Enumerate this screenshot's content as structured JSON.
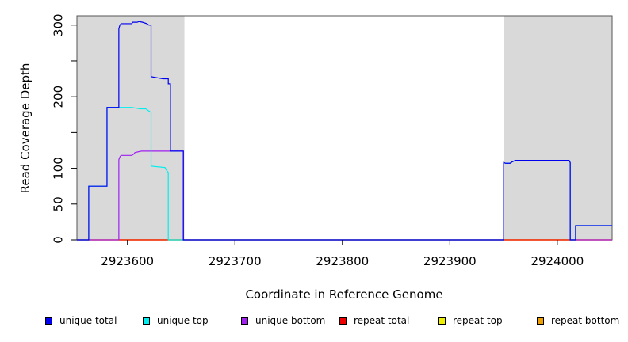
{
  "chart_data": {
    "type": "line",
    "xlabel": "Coordinate in Reference Genome",
    "ylabel": "Read Coverage Depth",
    "xlim": [
      2923553,
      2924051
    ],
    "ylim": [
      0,
      313
    ],
    "x_ticks": [
      2923600,
      2923700,
      2923800,
      2923900,
      2924000
    ],
    "x_tick_labels": [
      "2923600",
      "2923700",
      "2923800",
      "2923900",
      "2924000"
    ],
    "y_ticks": [
      0,
      50,
      100,
      200,
      300
    ],
    "y_tick_labels": [
      "0",
      "50",
      "100",
      "200",
      "300"
    ],
    "y_minor_ticks": [
      150,
      250
    ],
    "shaded_regions": [
      [
        2923553,
        2923653
      ],
      [
        2923950,
        2924051
      ]
    ],
    "shade_color": "#d9d9d9",
    "grid": false,
    "legend_position": "bottom",
    "series": [
      {
        "name": "unique total",
        "color": "#0000ee",
        "points": [
          [
            2923553,
            0
          ],
          [
            2923564,
            0
          ],
          [
            2923564,
            75
          ],
          [
            2923581,
            75
          ],
          [
            2923581,
            185
          ],
          [
            2923592,
            185
          ],
          [
            2923592,
            295
          ],
          [
            2923593,
            300
          ],
          [
            2923594,
            302
          ],
          [
            2923604,
            302
          ],
          [
            2923605,
            304
          ],
          [
            2923609,
            304
          ],
          [
            2923611,
            305
          ],
          [
            2923614,
            304
          ],
          [
            2923618,
            302
          ],
          [
            2923620,
            300
          ],
          [
            2923622,
            300
          ],
          [
            2923622,
            228
          ],
          [
            2923633,
            225
          ],
          [
            2923638,
            225
          ],
          [
            2923638,
            218
          ],
          [
            2923640,
            218
          ],
          [
            2923640,
            124
          ],
          [
            2923652,
            124
          ],
          [
            2923652,
            0
          ],
          [
            2923950,
            0
          ],
          [
            2923950,
            108
          ],
          [
            2923952,
            107
          ],
          [
            2923956,
            107
          ],
          [
            2923958,
            109
          ],
          [
            2923961,
            111
          ],
          [
            2924011,
            111
          ],
          [
            2924012,
            108
          ],
          [
            2924012,
            0
          ],
          [
            2924017,
            0
          ],
          [
            2924017,
            20
          ],
          [
            2924051,
            20
          ]
        ]
      },
      {
        "name": "unique top",
        "color": "#00eeee",
        "points": [
          [
            2923553,
            0
          ],
          [
            2923564,
            0
          ],
          [
            2923564,
            75
          ],
          [
            2923581,
            75
          ],
          [
            2923581,
            185
          ],
          [
            2923604,
            185
          ],
          [
            2923612,
            183
          ],
          [
            2923617,
            183
          ],
          [
            2923622,
            178
          ],
          [
            2923622,
            103
          ],
          [
            2923635,
            101
          ],
          [
            2923636,
            98
          ],
          [
            2923638,
            94
          ],
          [
            2923638,
            0
          ],
          [
            2923950,
            0
          ],
          [
            2923950,
            108
          ],
          [
            2923952,
            107
          ],
          [
            2923956,
            107
          ],
          [
            2923958,
            109
          ],
          [
            2923961,
            111
          ],
          [
            2924011,
            111
          ],
          [
            2924012,
            108
          ],
          [
            2924012,
            0
          ],
          [
            2924017,
            0
          ],
          [
            2924017,
            20
          ],
          [
            2924051,
            20
          ]
        ]
      },
      {
        "name": "unique bottom",
        "color": "#a020f0",
        "points": [
          [
            2923553,
            0
          ],
          [
            2923592,
            0
          ],
          [
            2923592,
            112
          ],
          [
            2923593,
            116
          ],
          [
            2923594,
            118
          ],
          [
            2923604,
            118
          ],
          [
            2923606,
            120
          ],
          [
            2923607,
            122
          ],
          [
            2923613,
            124
          ],
          [
            2923640,
            124
          ],
          [
            2923652,
            124
          ],
          [
            2923652,
            0
          ],
          [
            2923950,
            0
          ],
          [
            2923950,
            108
          ],
          [
            2923952,
            107
          ],
          [
            2923956,
            107
          ],
          [
            2923958,
            109
          ],
          [
            2923961,
            111
          ],
          [
            2924011,
            111
          ],
          [
            2924012,
            108
          ],
          [
            2924012,
            0
          ],
          [
            2924051,
            0
          ]
        ]
      },
      {
        "name": "repeat total",
        "color": "#ee0000",
        "points": [
          [
            2923553,
            0
          ],
          [
            2924051,
            0
          ]
        ]
      },
      {
        "name": "repeat top",
        "color": "#eeee00",
        "points": [
          [
            2923553,
            0
          ],
          [
            2924051,
            0
          ]
        ]
      },
      {
        "name": "repeat bottom",
        "color": "#eea000",
        "points": [
          [
            2923553,
            0
          ],
          [
            2924051,
            0
          ]
        ]
      }
    ]
  }
}
